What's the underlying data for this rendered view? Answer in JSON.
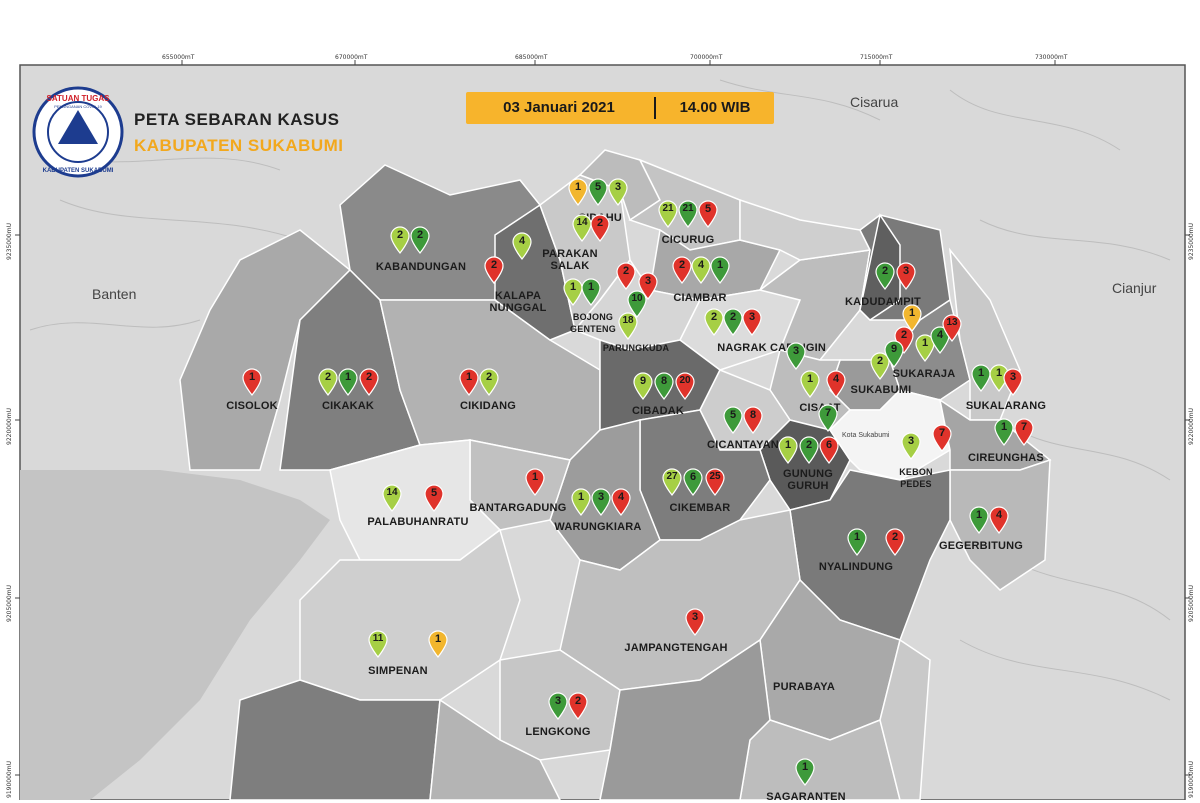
{
  "title": {
    "line1": "PETA SEBARAN KASUS",
    "line2": "KABUPATEN SUKABUMI"
  },
  "logo": {
    "top_text": "SATUAN TUGAS",
    "sub_text": "PENANGANAN COVID-19",
    "bottom_text": "KABUPATEN SUKABUMI"
  },
  "datebar": {
    "date": "03 Januari 2021",
    "time": "14.00 WIB"
  },
  "grid": {
    "top": [
      "655000mT",
      "670000mT",
      "685000mT",
      "700000mT",
      "715000mT",
      "730000mT"
    ],
    "left": [
      "9235000mU",
      "9220000mU",
      "9205000mU",
      "9190000mU"
    ],
    "right": [
      "9235000mU",
      "9220000mU",
      "9205000mU",
      "9190000mU"
    ]
  },
  "regions": {
    "cisarua": "Cisarua",
    "banten": "Banten",
    "cianjur": "Cianjur",
    "kota": "Kota Sukabumi"
  },
  "colors": {
    "green_dark": "#3e9a3a",
    "green_light": "#a6cf45",
    "red": "#e0332b",
    "yellow": "#f2b62e"
  },
  "districts": [
    {
      "name": "CIDAHU",
      "pins": [
        {
          "v": "1",
          "c": "yellow"
        },
        {
          "v": "5",
          "c": "green_dark"
        },
        {
          "v": "3",
          "c": "green_light"
        }
      ]
    },
    {
      "name": "CICURUG",
      "pins": [
        {
          "v": "21",
          "c": "green_light"
        },
        {
          "v": "21",
          "c": "green_dark"
        },
        {
          "v": "5",
          "c": "red"
        }
      ]
    },
    {
      "name": "PARAKAN SALAK",
      "pins": [
        {
          "v": "14",
          "c": "green_light"
        },
        {
          "v": "2",
          "c": "red"
        },
        {
          "v": "4",
          "c": "green_light"
        },
        {
          "v": "2",
          "c": "red"
        }
      ]
    },
    {
      "name": "KABANDUNGAN",
      "pins": [
        {
          "v": "2",
          "c": "green_light"
        },
        {
          "v": "2",
          "c": "green_dark"
        }
      ]
    },
    {
      "name": "KALAPA NUNGGAL",
      "pins": [
        {
          "v": "2",
          "c": "red"
        }
      ]
    },
    {
      "name": "BOJONG GENTENG",
      "pins": [
        {
          "v": "1",
          "c": "green_light"
        },
        {
          "v": "1",
          "c": "green_dark"
        }
      ]
    },
    {
      "name": "PARUNGKUDA",
      "pins": [
        {
          "v": "10",
          "c": "green_dark"
        },
        {
          "v": "18",
          "c": "green_light"
        },
        {
          "v": "2",
          "c": "red"
        },
        {
          "v": "3",
          "c": "red"
        }
      ]
    },
    {
      "name": "CIAMBAR",
      "pins": [
        {
          "v": "2",
          "c": "red"
        },
        {
          "v": "4",
          "c": "green_light"
        },
        {
          "v": "1",
          "c": "green_dark"
        }
      ]
    },
    {
      "name": "NAGRAK",
      "pins": [
        {
          "v": "2",
          "c": "green_light"
        },
        {
          "v": "2",
          "c": "green_dark"
        },
        {
          "v": "3",
          "c": "red"
        }
      ]
    },
    {
      "name": "CARINGIN",
      "pins": [
        {
          "v": "3",
          "c": "green_dark"
        }
      ]
    },
    {
      "name": "KADUDAMPIT",
      "pins": [
        {
          "v": "2",
          "c": "green_dark"
        },
        {
          "v": "3",
          "c": "red"
        },
        {
          "v": "1",
          "c": "yellow"
        }
      ]
    },
    {
      "name": "SUKARAJA",
      "pins": [
        {
          "v": "2",
          "c": "red"
        },
        {
          "v": "1",
          "c": "green_light"
        },
        {
          "v": "4",
          "c": "green_dark"
        },
        {
          "v": "13",
          "c": "red"
        }
      ]
    },
    {
      "name": "SUKABUMI",
      "pins": [
        {
          "v": "2",
          "c": "green_light"
        },
        {
          "v": "9",
          "c": "green_dark"
        }
      ]
    },
    {
      "name": "SUKALARANG",
      "pins": [
        {
          "v": "1",
          "c": "green_dark"
        },
        {
          "v": "1",
          "c": "green_light"
        },
        {
          "v": "3",
          "c": "red"
        }
      ]
    },
    {
      "name": "CISOLOK",
      "pins": [
        {
          "v": "1",
          "c": "red"
        }
      ]
    },
    {
      "name": "CIKAKAK",
      "pins": [
        {
          "v": "2",
          "c": "green_light"
        },
        {
          "v": "1",
          "c": "green_dark"
        },
        {
          "v": "2",
          "c": "red"
        }
      ]
    },
    {
      "name": "CIKIDANG",
      "pins": [
        {
          "v": "1",
          "c": "red"
        },
        {
          "v": "2",
          "c": "green_light"
        }
      ]
    },
    {
      "name": "CIBADAK",
      "pins": [
        {
          "v": "9",
          "c": "green_light"
        },
        {
          "v": "8",
          "c": "green_dark"
        },
        {
          "v": "20",
          "c": "red"
        }
      ]
    },
    {
      "name": "CISAAT",
      "pins": [
        {
          "v": "1",
          "c": "green_light"
        },
        {
          "v": "4",
          "c": "red"
        },
        {
          "v": "7",
          "c": "green_dark"
        }
      ]
    },
    {
      "name": "CICANTAYAN",
      "pins": [
        {
          "v": "5",
          "c": "green_dark"
        },
        {
          "v": "8",
          "c": "red"
        }
      ]
    },
    {
      "name": "GUNUNG GURUH",
      "pins": [
        {
          "v": "1",
          "c": "green_light"
        },
        {
          "v": "2",
          "c": "green_dark"
        },
        {
          "v": "6",
          "c": "red"
        }
      ]
    },
    {
      "name": "KEBON PEDES",
      "pins": [
        {
          "v": "3",
          "c": "green_light"
        },
        {
          "v": "7",
          "c": "red"
        }
      ]
    },
    {
      "name": "CIREUNGHAS",
      "pins": [
        {
          "v": "1",
          "c": "green_dark"
        },
        {
          "v": "7",
          "c": "red"
        }
      ]
    },
    {
      "name": "PALABUHANRATU",
      "pins": [
        {
          "v": "14",
          "c": "green_light"
        },
        {
          "v": "5",
          "c": "red"
        }
      ]
    },
    {
      "name": "BANTARGADUNG",
      "pins": [
        {
          "v": "1",
          "c": "red"
        }
      ]
    },
    {
      "name": "WARUNGKIARA",
      "pins": [
        {
          "v": "1",
          "c": "green_light"
        },
        {
          "v": "3",
          "c": "green_dark"
        },
        {
          "v": "4",
          "c": "red"
        }
      ]
    },
    {
      "name": "CIKEMBAR",
      "pins": [
        {
          "v": "27",
          "c": "green_light"
        },
        {
          "v": "6",
          "c": "green_dark"
        },
        {
          "v": "25",
          "c": "red"
        }
      ]
    },
    {
      "name": "GEGERBITUNG",
      "pins": [
        {
          "v": "1",
          "c": "green_dark"
        },
        {
          "v": "4",
          "c": "red"
        }
      ]
    },
    {
      "name": "NYALINDUNG",
      "pins": [
        {
          "v": "1",
          "c": "green_dark"
        },
        {
          "v": "2",
          "c": "red"
        }
      ]
    },
    {
      "name": "JAMPANGTENGAH",
      "pins": [
        {
          "v": "3",
          "c": "red"
        }
      ]
    },
    {
      "name": "SIMPENAN",
      "pins": [
        {
          "v": "11",
          "c": "green_light"
        },
        {
          "v": "1",
          "c": "yellow"
        }
      ]
    },
    {
      "name": "PURABAYA",
      "pins": []
    },
    {
      "name": "LENGKONG",
      "pins": [
        {
          "v": "3",
          "c": "green_dark"
        },
        {
          "v": "2",
          "c": "red"
        }
      ]
    },
    {
      "name": "SAGARANTEN",
      "pins": [
        {
          "v": "1",
          "c": "green_dark"
        }
      ]
    }
  ]
}
